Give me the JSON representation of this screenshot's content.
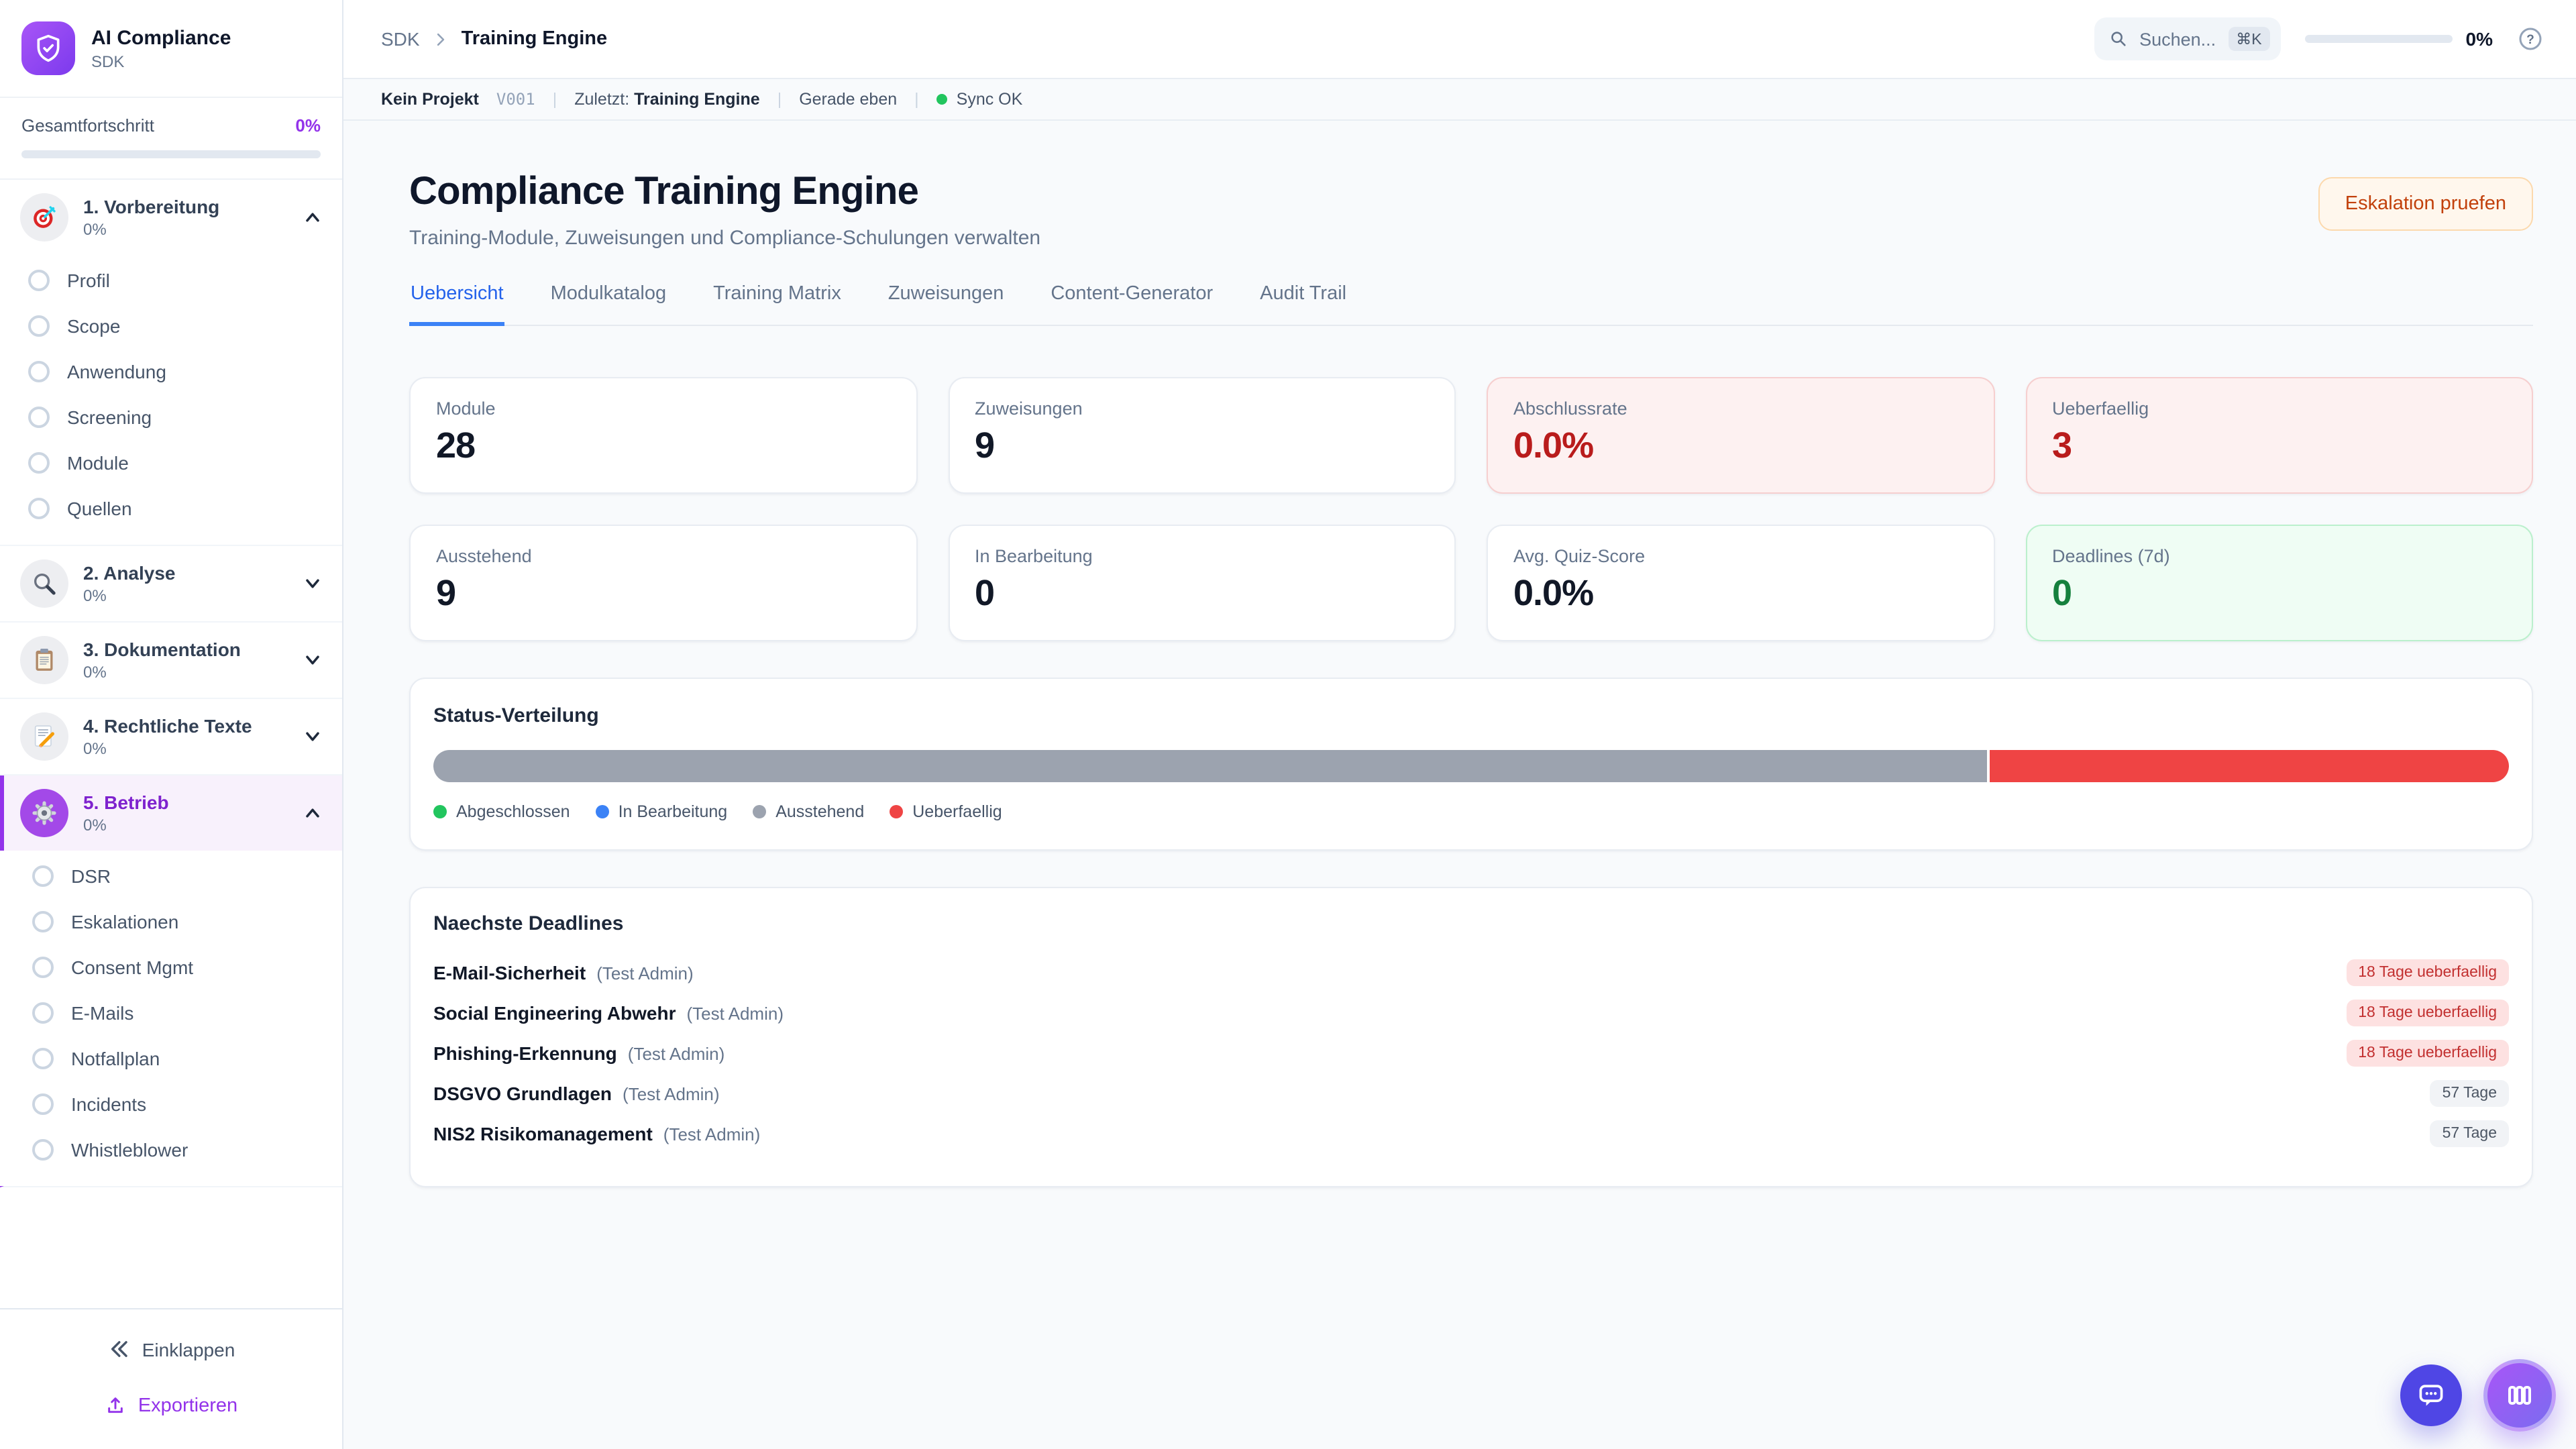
{
  "brand": {
    "name": "AI Compliance",
    "subtitle": "SDK"
  },
  "sidebar": {
    "progress_label": "Gesamtfortschritt",
    "progress_value": "0%",
    "sections": [
      {
        "label": "1. Vorbereitung",
        "percent": "0%",
        "icon": "target-icon",
        "state": "expanded",
        "active": false,
        "items": [
          "Profil",
          "Scope",
          "Anwendung",
          "Screening",
          "Module",
          "Quellen"
        ]
      },
      {
        "label": "2. Analyse",
        "percent": "0%",
        "icon": "magnifier-icon",
        "state": "collapsed",
        "active": false,
        "items": []
      },
      {
        "label": "3. Dokumentation",
        "percent": "0%",
        "icon": "clipboard-icon",
        "state": "collapsed",
        "active": false,
        "items": []
      },
      {
        "label": "4. Rechtliche Texte",
        "percent": "0%",
        "icon": "memo-pencil-icon",
        "state": "collapsed",
        "active": false,
        "items": []
      },
      {
        "label": "5. Betrieb",
        "percent": "0%",
        "icon": "gear-icon",
        "state": "expanded",
        "active": true,
        "items": [
          "DSR",
          "Eskalationen",
          "Consent Mgmt",
          "E-Mails",
          "Notfallplan",
          "Incidents",
          "Whistleblower"
        ]
      }
    ],
    "collapse_label": "Einklappen",
    "export_label": "Exportieren"
  },
  "topbar": {
    "breadcrumb": {
      "root": "SDK",
      "current": "Training Engine"
    },
    "search_placeholder": "Suchen...",
    "search_kbd": "⌘K",
    "progress_value": "0%"
  },
  "statusbar": {
    "project": "Kein Projekt",
    "version": "V001",
    "sep": "|",
    "last_label": "Zuletzt:",
    "last_value": "Training Engine",
    "updated": "Gerade eben",
    "sync": "Sync OK"
  },
  "page": {
    "title": "Compliance Training Engine",
    "subtitle": "Training-Module, Zuweisungen und Compliance-Schulungen verwalten",
    "action": "Eskalation pruefen",
    "tabs": [
      "Uebersicht",
      "Modulkatalog",
      "Training Matrix",
      "Zuweisungen",
      "Content-Generator",
      "Audit Trail"
    ],
    "active_tab": "Uebersicht"
  },
  "stats": [
    {
      "label": "Module",
      "value": "28",
      "variant": "default"
    },
    {
      "label": "Zuweisungen",
      "value": "9",
      "variant": "default"
    },
    {
      "label": "Abschlussrate",
      "value": "0.0%",
      "variant": "danger"
    },
    {
      "label": "Ueberfaellig",
      "value": "3",
      "variant": "danger"
    },
    {
      "label": "Ausstehend",
      "value": "9",
      "variant": "default"
    },
    {
      "label": "In Bearbeitung",
      "value": "0",
      "variant": "default"
    },
    {
      "label": "Avg. Quiz-Score",
      "value": "0.0%",
      "variant": "default"
    },
    {
      "label": "Deadlines (7d)",
      "value": "0",
      "variant": "success"
    }
  ],
  "distribution": {
    "title": "Status-Verteilung",
    "segments": [
      {
        "name": "Ausstehend",
        "percent": 75,
        "color": "#9ca3af"
      },
      {
        "name": "Ueberfaellig",
        "percent": 25,
        "color": "#ef4444"
      }
    ],
    "legend": [
      {
        "label": "Abgeschlossen",
        "color": "#22c55e"
      },
      {
        "label": "In Bearbeitung",
        "color": "#3b82f6"
      },
      {
        "label": "Ausstehend",
        "color": "#9ca3af"
      },
      {
        "label": "Ueberfaellig",
        "color": "#ef4444"
      }
    ]
  },
  "deadlines": {
    "title": "Naechste Deadlines",
    "rows": [
      {
        "name": "E-Mail-Sicherheit",
        "assignee": "(Test Admin)",
        "badge": "18 Tage ueberfaellig",
        "variant": "overdue"
      },
      {
        "name": "Social Engineering Abwehr",
        "assignee": "(Test Admin)",
        "badge": "18 Tage ueberfaellig",
        "variant": "overdue"
      },
      {
        "name": "Phishing-Erkennung",
        "assignee": "(Test Admin)",
        "badge": "18 Tage ueberfaellig",
        "variant": "overdue"
      },
      {
        "name": "DSGVO Grundlagen",
        "assignee": "(Test Admin)",
        "badge": "57 Tage",
        "variant": "normal"
      },
      {
        "name": "NIS2 Risikomanagement",
        "assignee": "(Test Admin)",
        "badge": "57 Tage",
        "variant": "normal"
      }
    ]
  },
  "accent_colors": {
    "purple": "#9333ea",
    "blue": "#2563eb",
    "red": "#b91c1c",
    "green": "#15803d",
    "orange": "#c2410c"
  }
}
